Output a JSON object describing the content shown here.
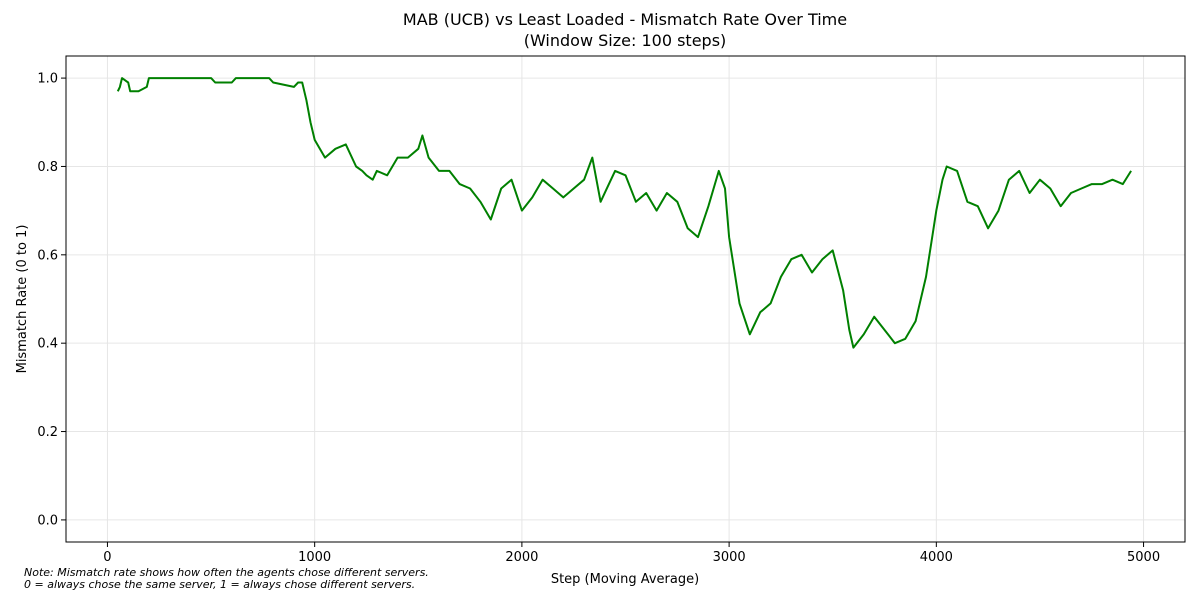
{
  "chart_data": {
    "type": "line",
    "title": "MAB (UCB) vs Least Loaded - Mismatch Rate Over Time",
    "subtitle": "(Window Size: 100 steps)",
    "xlabel": "Step (Moving Average)",
    "ylabel": "Mismatch Rate (0 to 1)",
    "xlim": [
      -200,
      5200
    ],
    "ylim": [
      -0.05,
      1.05
    ],
    "xticks": [
      0,
      1000,
      2000,
      3000,
      4000,
      5000
    ],
    "xtick_labels": [
      "0",
      "1000",
      "2000",
      "3000",
      "4000",
      "5000"
    ],
    "yticks": [
      0.0,
      0.2,
      0.4,
      0.6,
      0.8,
      1.0
    ],
    "ytick_labels": [
      "0.0",
      "0.2",
      "0.4",
      "0.6",
      "0.8",
      "1.0"
    ],
    "grid": true,
    "line_color": "#008000",
    "x": [
      50,
      60,
      70,
      100,
      110,
      150,
      190,
      200,
      300,
      500,
      520,
      600,
      620,
      780,
      800,
      900,
      920,
      940,
      960,
      980,
      1000,
      1050,
      1100,
      1150,
      1200,
      1230,
      1250,
      1280,
      1300,
      1350,
      1400,
      1450,
      1500,
      1520,
      1550,
      1600,
      1650,
      1700,
      1750,
      1800,
      1850,
      1900,
      1950,
      2000,
      2050,
      2100,
      2150,
      2200,
      2250,
      2300,
      2340,
      2380,
      2420,
      2450,
      2500,
      2550,
      2600,
      2650,
      2700,
      2750,
      2800,
      2850,
      2900,
      2950,
      2980,
      3000,
      3050,
      3100,
      3150,
      3200,
      3250,
      3300,
      3350,
      3400,
      3450,
      3500,
      3550,
      3580,
      3600,
      3650,
      3700,
      3750,
      3800,
      3850,
      3900,
      3950,
      3980,
      4000,
      4030,
      4050,
      4100,
      4150,
      4200,
      4250,
      4300,
      4350,
      4400,
      4450,
      4500,
      4550,
      4600,
      4650,
      4700,
      4750,
      4800,
      4850,
      4900,
      4940
    ],
    "y": [
      0.97,
      0.98,
      1.0,
      0.99,
      0.97,
      0.97,
      0.98,
      1.0,
      1.0,
      1.0,
      0.99,
      0.99,
      1.0,
      1.0,
      0.99,
      0.98,
      0.99,
      0.99,
      0.95,
      0.9,
      0.86,
      0.82,
      0.84,
      0.85,
      0.8,
      0.79,
      0.78,
      0.77,
      0.79,
      0.78,
      0.82,
      0.82,
      0.84,
      0.87,
      0.82,
      0.79,
      0.79,
      0.76,
      0.75,
      0.72,
      0.68,
      0.75,
      0.77,
      0.7,
      0.73,
      0.77,
      0.75,
      0.73,
      0.75,
      0.77,
      0.82,
      0.72,
      0.76,
      0.79,
      0.78,
      0.72,
      0.74,
      0.7,
      0.74,
      0.72,
      0.66,
      0.64,
      0.71,
      0.79,
      0.75,
      0.64,
      0.49,
      0.42,
      0.47,
      0.49,
      0.55,
      0.59,
      0.6,
      0.56,
      0.59,
      0.61,
      0.52,
      0.43,
      0.39,
      0.42,
      0.46,
      0.43,
      0.4,
      0.41,
      0.45,
      0.55,
      0.64,
      0.7,
      0.77,
      0.8,
      0.79,
      0.72,
      0.71,
      0.66,
      0.7,
      0.77,
      0.79,
      0.74,
      0.77,
      0.75,
      0.71,
      0.74,
      0.75,
      0.76,
      0.76,
      0.77,
      0.76,
      0.79
    ]
  },
  "note": {
    "line1": "Note: Mismatch rate shows how often the agents chose different servers.",
    "line2": "0 = always chose the same server, 1 = always chose different servers."
  }
}
